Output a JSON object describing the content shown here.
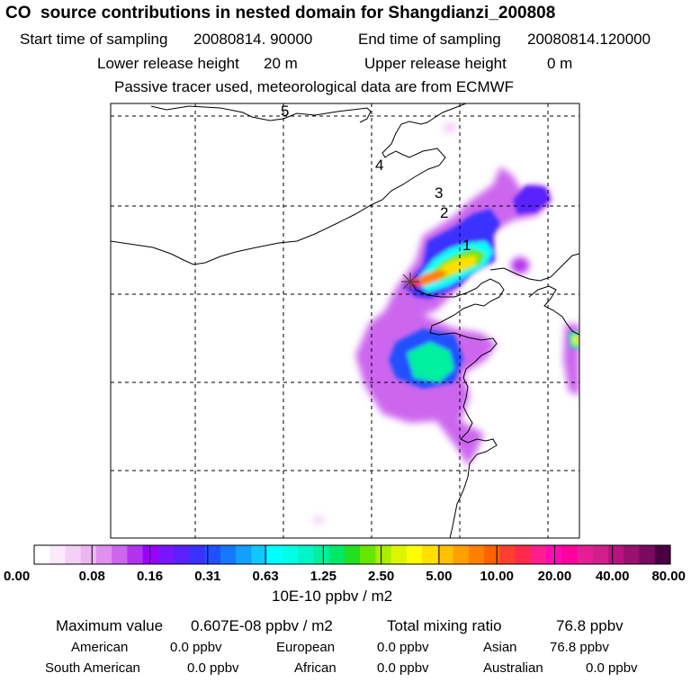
{
  "header": {
    "title": "CO  source contributions in nested domain for Shangdianzi_200808",
    "start_label": "Start time of sampling",
    "start_value": "20080814. 90000",
    "end_label": "End time of sampling",
    "end_value": "20080814.120000",
    "lower_label": "Lower release height",
    "lower_value": "20 m",
    "upper_label": "Upper release height",
    "upper_value": "0 m",
    "tracer_note": "Passive tracer used, meteorological data are from ECMWF"
  },
  "map": {
    "contour_labels": [
      "5",
      "4",
      "3",
      "2",
      "1"
    ],
    "site_marker": "cross-marker"
  },
  "colorbar": {
    "tick_labels": [
      "0.00",
      "0.08",
      "0.16",
      "0.31",
      "0.63",
      "1.25",
      "2.50",
      "5.00",
      "10.00",
      "20.00",
      "40.00",
      "80.00"
    ],
    "unit": "10E-10 ppbv / m2",
    "colors": [
      "#ffffff",
      "#fbe8fb",
      "#f4d0f6",
      "#ecb6f2",
      "#e090f0",
      "#cc66ee",
      "#b233ee",
      "#9900ff",
      "#7a14ff",
      "#5a20ff",
      "#3a30ff",
      "#2050ff",
      "#1478ff",
      "#12a0ff",
      "#10c8ff",
      "#00ffff",
      "#00ffe6",
      "#00f5c8",
      "#00f0a0",
      "#00e868",
      "#22e020",
      "#66e600",
      "#aaee00",
      "#ddf500",
      "#ffff00",
      "#ffe000",
      "#ffc000",
      "#ffa000",
      "#ff8000",
      "#ff6000",
      "#ff4030",
      "#ff2a4a",
      "#ff1e8c",
      "#ff0ab4",
      "#ff00a0",
      "#e61e96",
      "#d01e8c",
      "#b81480",
      "#981070",
      "#7a0a60",
      "#4a0040"
    ]
  },
  "footer": {
    "max_label": "Maximum value",
    "max_value": "0.607E-08 ppbv / m2",
    "total_label": "Total mixing ratio",
    "total_value": "76.8 ppbv",
    "regions": [
      {
        "name": "American",
        "value": "0.0 ppbv"
      },
      {
        "name": "European",
        "value": "0.0 ppbv"
      },
      {
        "name": "Asian",
        "value": "76.8 ppbv"
      },
      {
        "name": "South American",
        "value": "0.0 ppbv"
      },
      {
        "name": "African",
        "value": "0.0 ppbv"
      },
      {
        "name": "Australian",
        "value": "0.0 ppbv"
      }
    ]
  }
}
